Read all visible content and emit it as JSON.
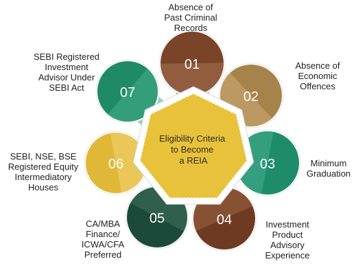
{
  "center": {
    "lines": [
      "Eligibility Criteria",
      "to Become",
      "a REIA"
    ],
    "color": "#E8C23B"
  },
  "items": [
    {
      "number": "01",
      "label": "Absence of\nPast Criminal\nRecords",
      "color": "#7A4428",
      "light": "#A06A4C"
    },
    {
      "number": "02",
      "label": "Absence of\nEconomic\nOffences",
      "color": "#A6834A",
      "light": "#C7A56E"
    },
    {
      "number": "03",
      "label": "Minimum\nGraduation",
      "color": "#1E8C6B",
      "light": "#3FA98A"
    },
    {
      "number": "04",
      "label": "Investment\nProduct\nAdvisory\nExperience",
      "color": "#6E3B22",
      "light": "#95603F"
    },
    {
      "number": "05",
      "label": "CA/MBA\nFinance/\nICWA/CFA\nPreferred",
      "color": "#1C4A3A",
      "light": "#3D6A58"
    },
    {
      "number": "06",
      "label": "SEBI, NSE, BSE\nRegistered Equity\nIntermediatory\nHouses",
      "color": "#E0B737",
      "light": "#EFD06A"
    },
    {
      "number": "07",
      "label": "SEBI Registered\nInvestment\nAdvisor Under\nSEBI Act",
      "color": "#1E8A66",
      "light": "#41A886"
    }
  ]
}
